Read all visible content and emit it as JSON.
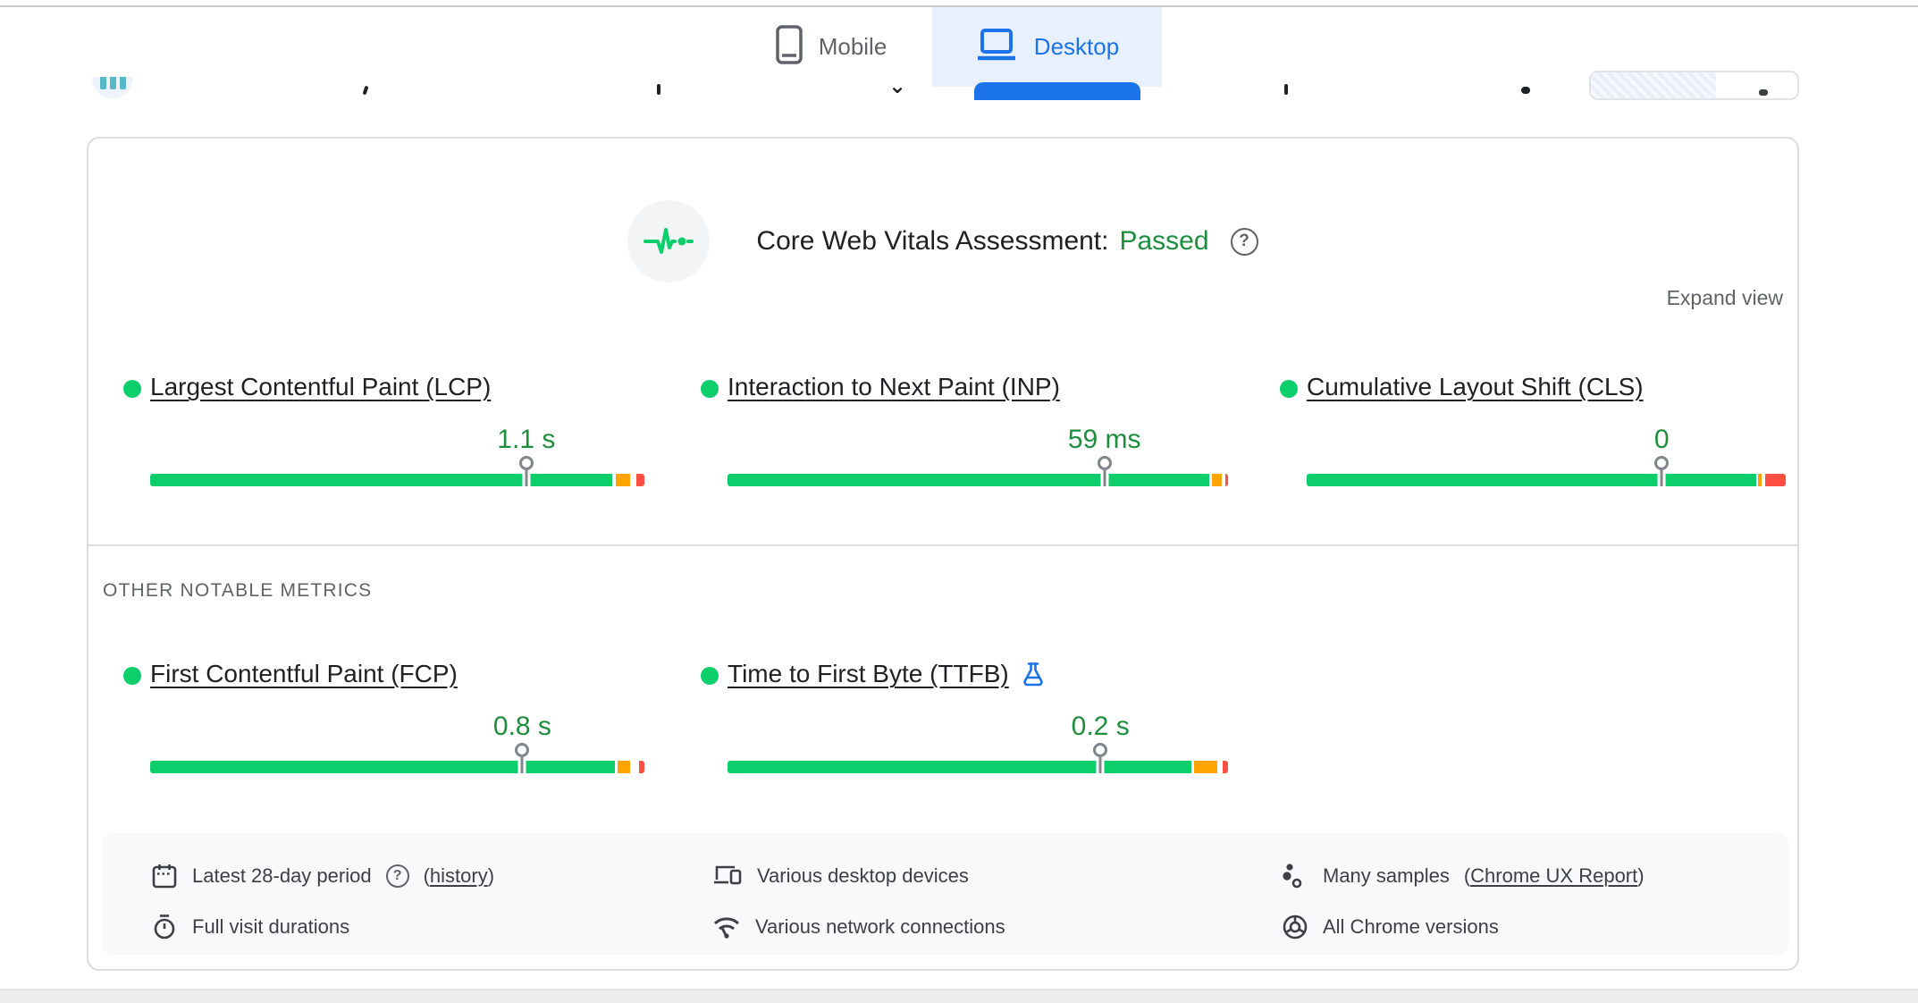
{
  "colors": {
    "bar_green": "#0cce6b",
    "bar_orange": "#ffa400",
    "bar_red": "#ff4e42",
    "value_green": "#1e8e3e",
    "accent_blue": "#1a73e8",
    "tab_active_bg": "#e8f0fe",
    "marker_gray": "#80868b"
  },
  "header": {
    "tabs": [
      {
        "label": "Mobile",
        "icon": "mobile-phone-icon",
        "active": false
      },
      {
        "label": "Desktop",
        "icon": "desktop-laptop-icon",
        "active": true
      }
    ]
  },
  "assessment": {
    "icon": "pulse-icon",
    "title": "Core Web Vitals Assessment:",
    "status": "Passed",
    "expand_label": "Expand view"
  },
  "metrics": {
    "core": [
      {
        "id": "lcp",
        "label": "Largest Contentful Paint (LCP)",
        "value": "1.1 s",
        "status": "good",
        "marker_pct": 76.1,
        "segments": {
          "green_end": 93.5,
          "orange": [
            94.2,
            97.1
          ],
          "red": [
            98.4,
            100
          ]
        }
      },
      {
        "id": "inp",
        "label": "Interaction to Next Paint (INP)",
        "value": "59 ms",
        "status": "good",
        "marker_pct": 75.3,
        "segments": {
          "green_end": 96.3,
          "orange": [
            96.8,
            98.8
          ],
          "red": [
            99.4,
            100
          ]
        }
      },
      {
        "id": "cls",
        "label": "Cumulative Layout Shift (CLS)",
        "value": "0",
        "status": "good",
        "marker_pct": 74.1,
        "segments": {
          "green_end": 93.8,
          "orange": [
            94.2,
            95.0
          ],
          "red": [
            95.7,
            100
          ]
        }
      }
    ],
    "other_heading": "OTHER NOTABLE METRICS",
    "other": [
      {
        "id": "fcp",
        "label": "First Contentful Paint (FCP)",
        "value": "0.8 s",
        "status": "good",
        "marker_pct": 75.3,
        "segments": {
          "green_end": 94.1,
          "orange": [
            94.6,
            97.1
          ],
          "red": [
            98.9,
            100
          ]
        }
      },
      {
        "id": "ttfb",
        "label": "Time to First Byte (TTFB)",
        "value": "0.2 s",
        "status": "good",
        "experimental": true,
        "marker_pct": 74.5,
        "segments": {
          "green_end": 92.7,
          "orange": [
            93.2,
            97.8
          ],
          "red": [
            98.9,
            100
          ]
        }
      }
    ]
  },
  "footer": {
    "items": [
      {
        "icon": "calendar-icon",
        "text": "Latest 28-day period",
        "has_help": true,
        "link_prefix": "(",
        "link": "history",
        "link_suffix": ")"
      },
      {
        "icon": "desktop-devices-icon",
        "text": "Various desktop devices"
      },
      {
        "icon": "samples-icon",
        "text": "Many samples",
        "link_prefix": "(",
        "link": "Chrome UX Report",
        "link_suffix": ")"
      },
      {
        "icon": "stopwatch-icon",
        "text": "Full visit durations"
      },
      {
        "icon": "network-icon",
        "text": "Various network connections"
      },
      {
        "icon": "chrome-icon",
        "text": "All Chrome versions"
      }
    ]
  }
}
